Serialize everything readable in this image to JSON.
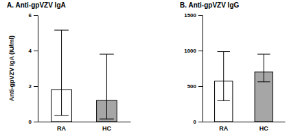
{
  "chart_data": [
    {
      "type": "bar",
      "title": "A. Anti-gpVZV IgA",
      "y_label": "Anti-gpVZV IgA (IU/ml)",
      "categories": [
        "RA",
        "HC"
      ],
      "values": [
        1.8,
        1.2
      ],
      "colors": [
        "#ffffff",
        "#a6a6a6"
      ],
      "error_low": [
        0.35,
        0.15
      ],
      "error_high": [
        5.15,
        3.8
      ],
      "ylim": [
        0,
        6
      ],
      "yticks": [
        0,
        2,
        4,
        6
      ]
    },
    {
      "type": "bar",
      "title": "B. Anti-gpVZV IgG",
      "categories": [
        "RA",
        "HC"
      ],
      "values": [
        570,
        700
      ],
      "colors": [
        "#ffffff",
        "#a6a6a6"
      ],
      "error_low": [
        295,
        560
      ],
      "error_high": [
        985,
        950
      ],
      "ylim": [
        0,
        1500
      ],
      "yticks": [
        0,
        500,
        1000,
        1500
      ]
    }
  ]
}
